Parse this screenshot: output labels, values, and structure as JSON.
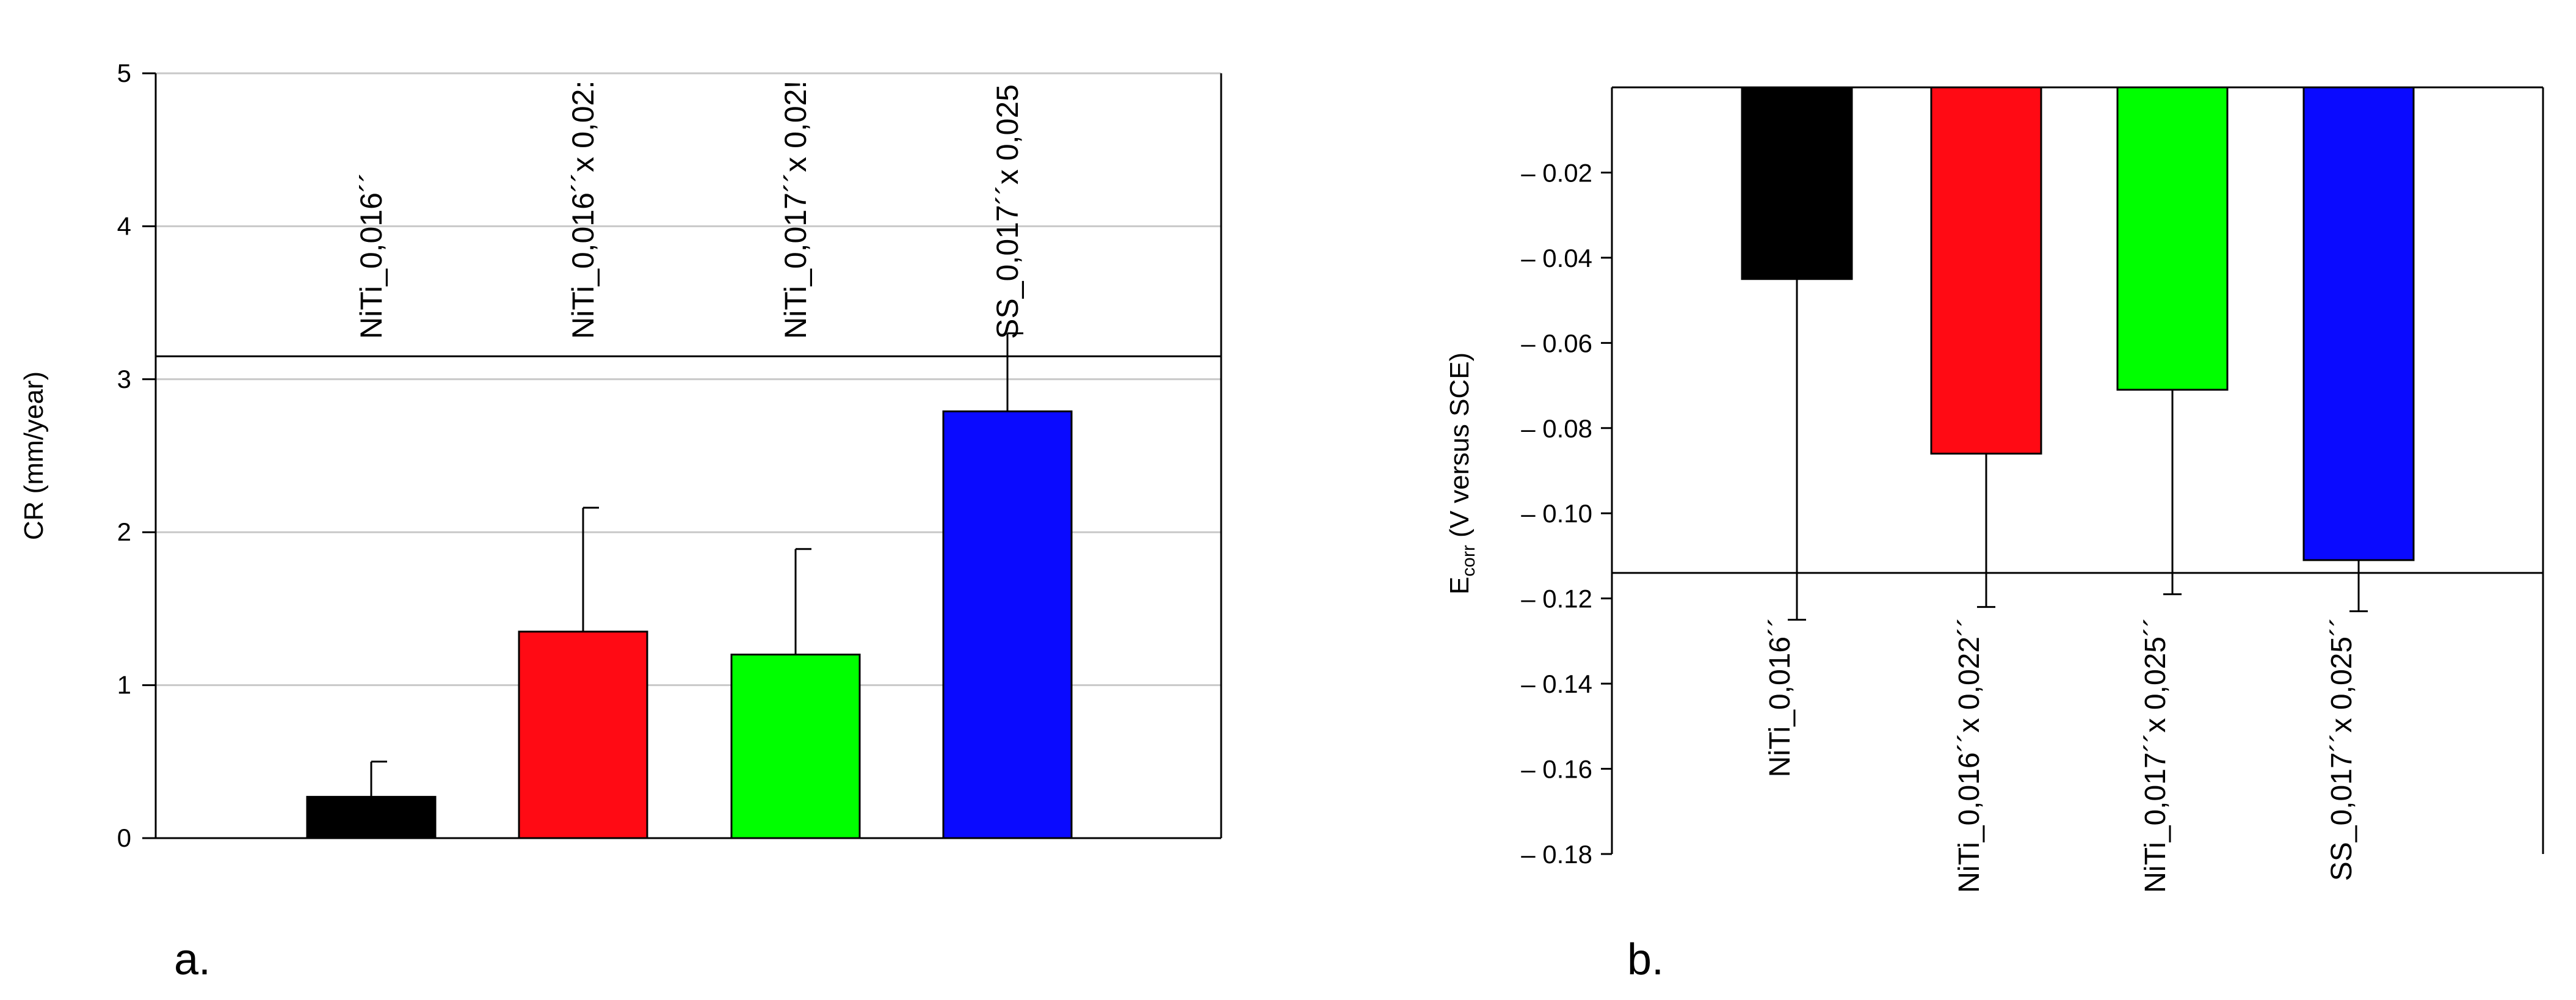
{
  "panel_labels": [
    "a.",
    "b."
  ],
  "chart_data": [
    {
      "type": "bar",
      "panel": "a.",
      "title": "",
      "xlabel": "",
      "ylabel": "CR (mm/year)",
      "ylim": [
        0,
        5
      ],
      "yticks": [
        "0",
        "1",
        "2",
        "3",
        "4",
        "5"
      ],
      "grid": true,
      "categories": [
        "NiTi_0,016´´",
        "NiTi_0,016´´x 0,022´´",
        "NiTi_0,017´´x 0,025´´",
        "SS_0,017´´x 0,025´´"
      ],
      "category_labels_shown": [
        "NiTi_0,016´´",
        "NiTi_0,016´´x 0,02:",
        "NiTi_0,017´´x 0,02!",
        "SS_0,017´´x 0,025"
      ],
      "values": [
        0.27,
        1.35,
        1.2,
        2.79
      ],
      "error_upper": [
        0.5,
        2.16,
        1.89,
        3.3
      ],
      "colors": [
        "#000000",
        "#ff0a14",
        "#00ff00",
        "#0a0aff"
      ],
      "reference_line": 3.15
    },
    {
      "type": "bar",
      "panel": "b.",
      "title": "",
      "xlabel": "",
      "ylabel_main": "E",
      "ylabel_sub": "corr",
      "ylabel_rest": " (V versus SCE)",
      "ylim": [
        -0.18,
        0
      ],
      "yticks": [
        "– 0.02",
        "– 0.04",
        "– 0.06",
        "– 0.08",
        "– 0.10",
        "– 0.12",
        "– 0.14",
        "– 0.16",
        "– 0.18"
      ],
      "ytick_values": [
        -0.02,
        -0.04,
        -0.06,
        -0.08,
        -0.1,
        -0.12,
        -0.14,
        -0.16,
        -0.18
      ],
      "grid": false,
      "categories": [
        "NiTi_0,016´´",
        "NiTi_0,016´´x 0,022´´",
        "NiTi_0,017´´x 0,025´´",
        "SS_0,017´´x 0,025´´"
      ],
      "values": [
        -0.045,
        -0.086,
        -0.071,
        -0.111
      ],
      "error_lower": [
        -0.125,
        -0.122,
        -0.119,
        -0.123
      ],
      "colors": [
        "#000000",
        "#ff0a14",
        "#00ff00",
        "#0a0aff"
      ],
      "reference_line": -0.114
    }
  ]
}
